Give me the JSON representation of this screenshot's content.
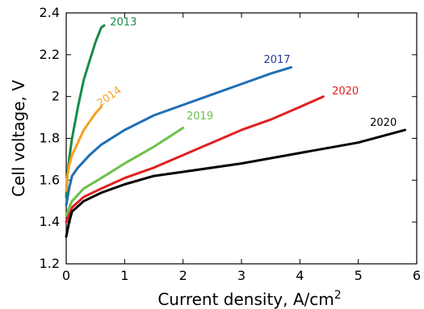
{
  "chart_data": {
    "type": "line",
    "xlabel": "Current density, A/cm",
    "xlabel_sup": "2",
    "ylabel": "Cell voltage, V",
    "xlim": [
      0,
      6
    ],
    "ylim": [
      1.2,
      2.4
    ],
    "grid": false,
    "xticks": [
      0,
      1,
      2,
      3,
      4,
      5,
      6
    ],
    "xtick_labels": [
      "0",
      "1",
      "2",
      "3",
      "4",
      "5",
      "6"
    ],
    "yticks": [
      1.2,
      1.4,
      1.6,
      1.8,
      2.0,
      2.2,
      2.4
    ],
    "ytick_labels": [
      "1.2",
      "1.4",
      "1.6",
      "1.8",
      "2",
      "2.2",
      "2.4"
    ],
    "series": [
      {
        "name": "2013",
        "color": "#1a8a4a",
        "points": [
          [
            0,
            1.52
          ],
          [
            0.02,
            1.62
          ],
          [
            0.05,
            1.7
          ],
          [
            0.1,
            1.8
          ],
          [
            0.2,
            1.95
          ],
          [
            0.3,
            2.08
          ],
          [
            0.4,
            2.17
          ],
          [
            0.5,
            2.26
          ],
          [
            0.6,
            2.33
          ],
          [
            0.65,
            2.34
          ]
        ]
      },
      {
        "name": "2014",
        "color": "#f5a020",
        "points": [
          [
            0,
            1.55
          ],
          [
            0.02,
            1.62
          ],
          [
            0.05,
            1.67
          ],
          [
            0.1,
            1.72
          ],
          [
            0.2,
            1.78
          ],
          [
            0.3,
            1.84
          ],
          [
            0.4,
            1.88
          ],
          [
            0.5,
            1.92
          ],
          [
            0.6,
            1.95
          ]
        ]
      },
      {
        "name": "2017",
        "color": "#1f6fb4",
        "points": [
          [
            0,
            1.48
          ],
          [
            0.05,
            1.56
          ],
          [
            0.1,
            1.62
          ],
          [
            0.2,
            1.66
          ],
          [
            0.4,
            1.72
          ],
          [
            0.6,
            1.77
          ],
          [
            1.0,
            1.84
          ],
          [
            1.5,
            1.91
          ],
          [
            2.0,
            1.96
          ],
          [
            2.5,
            2.01
          ],
          [
            3.0,
            2.06
          ],
          [
            3.5,
            2.11
          ],
          [
            3.85,
            2.14
          ]
        ]
      },
      {
        "name": "2019",
        "color": "#6cc04a",
        "points": [
          [
            0,
            1.43
          ],
          [
            0.05,
            1.47
          ],
          [
            0.1,
            1.5
          ],
          [
            0.3,
            1.56
          ],
          [
            0.6,
            1.61
          ],
          [
            1.0,
            1.68
          ],
          [
            1.5,
            1.76
          ],
          [
            2.0,
            1.85
          ]
        ]
      },
      {
        "name": "2020",
        "color": "#e02020",
        "points": [
          [
            0,
            1.4
          ],
          [
            0.1,
            1.47
          ],
          [
            0.3,
            1.52
          ],
          [
            0.6,
            1.56
          ],
          [
            1.0,
            1.61
          ],
          [
            1.5,
            1.66
          ],
          [
            2.0,
            1.72
          ],
          [
            2.5,
            1.78
          ],
          [
            3.0,
            1.84
          ],
          [
            3.5,
            1.89
          ],
          [
            4.0,
            1.95
          ],
          [
            4.4,
            2.0
          ]
        ]
      },
      {
        "name": "2020",
        "color": "#000000",
        "points": [
          [
            0,
            1.33
          ],
          [
            0.05,
            1.4
          ],
          [
            0.1,
            1.45
          ],
          [
            0.3,
            1.5
          ],
          [
            0.6,
            1.54
          ],
          [
            1.0,
            1.58
          ],
          [
            1.5,
            1.62
          ],
          [
            2.0,
            1.64
          ],
          [
            3.0,
            1.68
          ],
          [
            4.0,
            1.73
          ],
          [
            5.0,
            1.78
          ],
          [
            5.8,
            1.84
          ]
        ]
      }
    ],
    "labels": [
      {
        "text": "2013",
        "x": 0.75,
        "y": 2.34,
        "color": "#1a8a4a",
        "rotate": 0
      },
      {
        "text": "2014",
        "x": 0.58,
        "y": 1.95,
        "color": "#f5a020",
        "rotate": -35
      },
      {
        "text": "2017",
        "x": 3.38,
        "y": 2.16,
        "color": "#2a3a9a",
        "rotate": 0
      },
      {
        "text": "2019",
        "x": 2.06,
        "y": 1.89,
        "color": "#6cc04a",
        "rotate": 0
      },
      {
        "text": "2020",
        "x": 4.55,
        "y": 2.01,
        "color": "#e02020",
        "rotate": 0
      },
      {
        "text": "2020",
        "x": 5.2,
        "y": 1.86,
        "color": "#000000",
        "rotate": 0
      }
    ]
  }
}
